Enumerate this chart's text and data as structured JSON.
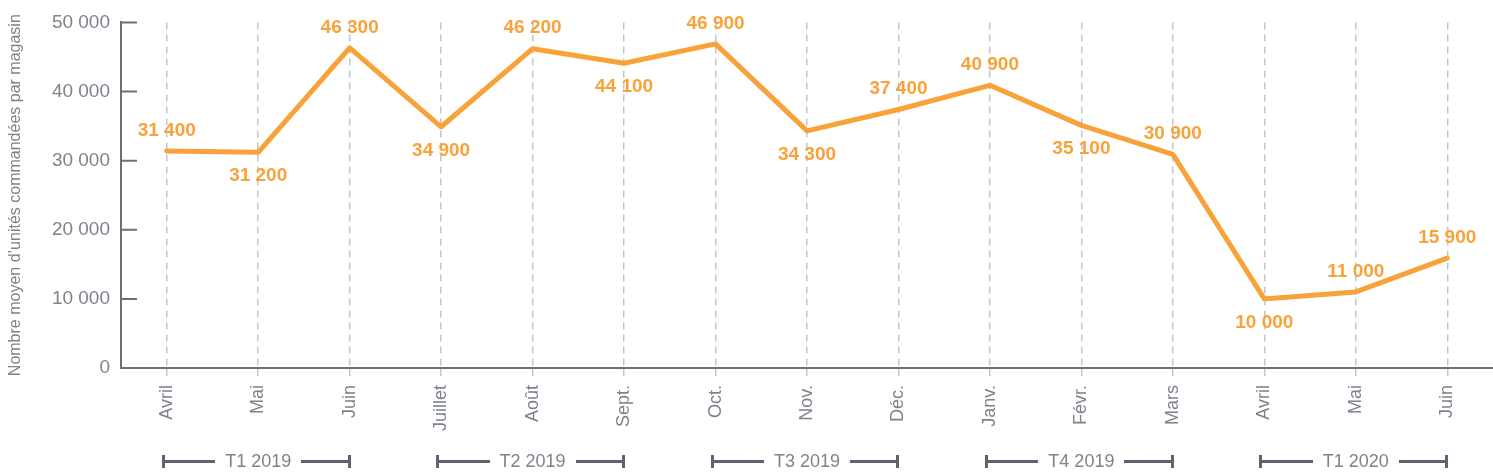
{
  "chart_data": {
    "type": "line",
    "ylabel": "Nombre moyen d’unités commandées par magasin",
    "categories": [
      "Avril",
      "Mai",
      "Juin",
      "Juillet",
      "Août",
      "Sept.",
      "Oct.",
      "Nov.",
      "Déc.",
      "Janv.",
      "Févr.",
      "Mars",
      "Avril",
      "Mai",
      "Juin"
    ],
    "values": [
      31400,
      31200,
      46300,
      34900,
      46200,
      44100,
      46900,
      34300,
      37400,
      40900,
      35100,
      30900,
      10000,
      11000,
      15900
    ],
    "value_labels": [
      "31 400",
      "31 200",
      "46 300",
      "34 900",
      "46 200",
      "44 100",
      "46 900",
      "34 300",
      "37 400",
      "40 900",
      "35 100",
      "30 900",
      "10 000",
      "11 000",
      "15 900"
    ],
    "color": "#f9a23a",
    "marker": "none",
    "line_style": "solid",
    "ylim": [
      0,
      50000
    ],
    "yticks": [
      0,
      {
        "value": 10000,
        "label": "10 000"
      },
      {
        "value": 20000,
        "label": "20 000"
      },
      {
        "value": 30000,
        "label": "30 000"
      },
      {
        "value": 40000,
        "label": "40 000"
      },
      {
        "value": 50000,
        "label": "50 000"
      }
    ],
    "grid": "x",
    "annotations": [
      "T1 2019",
      "T2 2019",
      "T3 2019",
      "T4 2019",
      "T1 2020"
    ]
  }
}
